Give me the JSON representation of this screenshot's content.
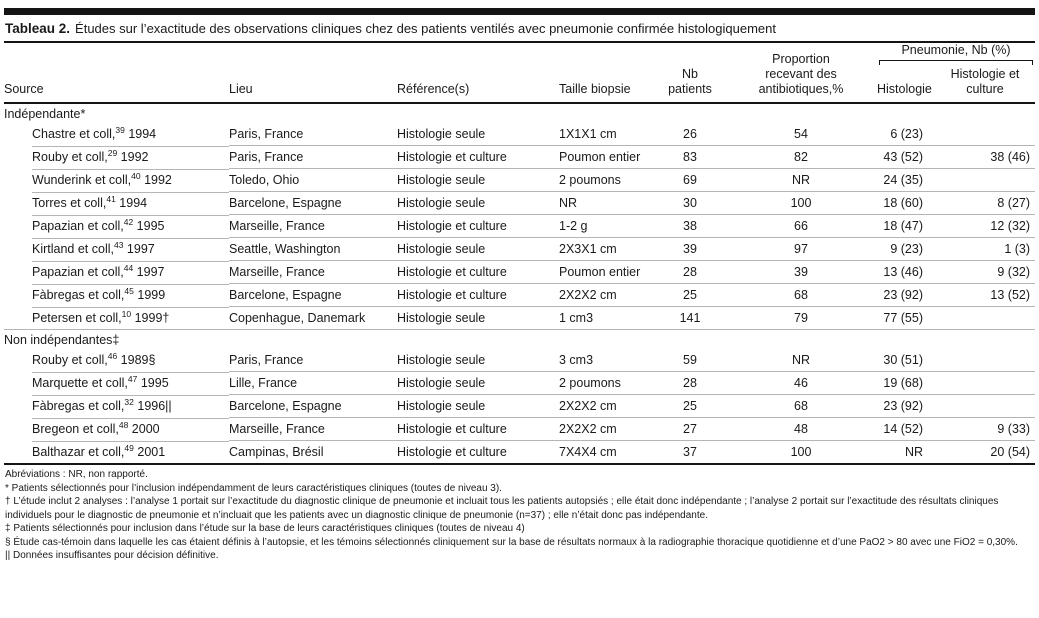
{
  "table": {
    "title_label": "Tableau 2.",
    "title_text": "Études sur l’exactitude des observations cliniques chez des patients ventilés avec pneumonie confirmée histologiquement",
    "spanner": "Pneumonie, Nb (%)",
    "columns": [
      "Source",
      "Lieu",
      "Référence(s)",
      "Taille biopsie",
      "Nb patients",
      "Proportion recevant des antibiotiques,%",
      "Histologie",
      "Histologie et culture"
    ],
    "sections": [
      {
        "label": "Indépendante*",
        "rows": [
          {
            "source": "Chastre et coll,",
            "citation": "39",
            "year": "1994",
            "lieu": "Paris, France",
            "reference": "Histologie seule",
            "biopsie": "1X1X1 cm",
            "nb_patients": "26",
            "antibiotiques": "54",
            "histologie": "6 (23)",
            "histologie_culture": ""
          },
          {
            "source": "Rouby et coll,",
            "citation": "29",
            "year": "1992",
            "lieu": "Paris, France",
            "reference": "Histologie et culture",
            "biopsie": "Poumon entier",
            "nb_patients": "83",
            "antibiotiques": "82",
            "histologie": "43 (52)",
            "histologie_culture": "38 (46)"
          },
          {
            "source": "Wunderink et coll,",
            "citation": "40",
            "year": "1992",
            "lieu": "Toledo, Ohio",
            "reference": "Histologie seule",
            "biopsie": "2 poumons",
            "nb_patients": "69",
            "antibiotiques": "NR",
            "histologie": "24 (35)",
            "histologie_culture": ""
          },
          {
            "source": "Torres et coll,",
            "citation": "41",
            "year": "1994",
            "lieu": "Barcelone, Espagne",
            "reference": "Histologie seule",
            "biopsie": "NR",
            "nb_patients": "30",
            "antibiotiques": "100",
            "histologie": "18 (60)",
            "histologie_culture": "8 (27)"
          },
          {
            "source": "Papazian et coll,",
            "citation": "42",
            "year": "1995",
            "lieu": "Marseille, France",
            "reference": "Histologie et culture",
            "biopsie": "1-2 g",
            "nb_patients": "38",
            "antibiotiques": "66",
            "histologie": "18 (47)",
            "histologie_culture": "12 (32)"
          },
          {
            "source": "Kirtland et coll,",
            "citation": "43",
            "year": "1997",
            "lieu": "Seattle, Washington",
            "reference": "Histologie seule",
            "biopsie": "2X3X1 cm",
            "nb_patients": "39",
            "antibiotiques": "97",
            "histologie": "9 (23)",
            "histologie_culture": "1 (3)"
          },
          {
            "source": "Papazian et coll,",
            "citation": "44",
            "year": "1997",
            "lieu": "Marseille, France",
            "reference": "Histologie et culture",
            "biopsie": "Poumon entier",
            "nb_patients": "28",
            "antibiotiques": "39",
            "histologie": "13 (46)",
            "histologie_culture": "9 (32)"
          },
          {
            "source": "Fàbregas et coll,",
            "citation": "45",
            "year": "1999",
            "lieu": "Barcelone, Espagne",
            "reference": "Histologie et culture",
            "biopsie": "2X2X2 cm",
            "nb_patients": "25",
            "antibiotiques": "68",
            "histologie": "23 (92)",
            "histologie_culture": "13 (52)"
          },
          {
            "source": "Petersen et coll,",
            "citation": "10",
            "year": "1999†",
            "lieu": "Copenhague, Danemark",
            "reference": "Histologie seule",
            "biopsie": "1 cm3",
            "nb_patients": "141",
            "antibiotiques": "79",
            "histologie": "77 (55)",
            "histologie_culture": ""
          }
        ]
      },
      {
        "label": "Non indépendantes‡",
        "rows": [
          {
            "source": "Rouby et coll,",
            "citation": "46",
            "year": "1989§",
            "lieu": "Paris, France",
            "reference": "Histologie seule",
            "biopsie": "3 cm3",
            "nb_patients": "59",
            "antibiotiques": "NR",
            "histologie": "30 (51)",
            "histologie_culture": ""
          },
          {
            "source": "Marquette et coll,",
            "citation": "47",
            "year": "1995",
            "lieu": "Lille, France",
            "reference": "Histologie seule",
            "biopsie": "2 poumons",
            "nb_patients": "28",
            "antibiotiques": "46",
            "histologie": "19 (68)",
            "histologie_culture": ""
          },
          {
            "source": "Fàbregas et coll,",
            "citation": "32",
            "year": "1996||",
            "lieu": "Barcelone, Espagne",
            "reference": "Histologie seule",
            "biopsie": "2X2X2 cm",
            "nb_patients": "25",
            "antibiotiques": "68",
            "histologie": "23 (92)",
            "histologie_culture": ""
          },
          {
            "source": "Bregeon et coll,",
            "citation": "48",
            "year": "2000",
            "lieu": "Marseille, France",
            "reference": "Histologie et culture",
            "biopsie": "2X2X2 cm",
            "nb_patients": "27",
            "antibiotiques": "48",
            "histologie": "14 (52)",
            "histologie_culture": "9 (33)"
          },
          {
            "source": "Balthazar et coll,",
            "citation": "49",
            "year": "2001",
            "lieu": "Campinas, Brésil",
            "reference": "Histologie et culture",
            "biopsie": "7X4X4 cm",
            "nb_patients": "37",
            "antibiotiques": "100",
            "histologie": "NR",
            "histologie_culture": "20 (54)"
          }
        ]
      }
    ],
    "footnotes": [
      "Abréviations : NR, non rapporté.",
      "* Patients sélectionnés pour l’inclusion indépendamment de leurs caractéristiques cliniques (toutes de niveau 3).",
      "† L’étude inclut 2 analyses : l’analyse 1 portait sur l’exactitude du diagnostic clinique de pneumonie et incluait tous les patients autopsiés ; elle était donc indépendante ; l’analyse 2 portait sur l’exactitude des résultats cliniques individuels pour le diagnostic de pneumonie et n’incluait que les patients avec un diagnostic clinique de pneumonie (n=37) ; elle n’était donc pas indépendante.",
      "‡ Patients sélectionnés pour inclusion dans l’étude sur la base de leurs caractéristiques cliniques (toutes de niveau 4)",
      "§ Étude cas-témoin dans laquelle les cas étaient définis à l’autopsie, et les témoins sélectionnés cliniquement sur la base de résultats normaux à la radiographie thoracique quotidienne et d’une PaO2 > 80 avec une FiO2 = 0,30%.",
      "|| Données insuffisantes pour décision définitive."
    ]
  }
}
